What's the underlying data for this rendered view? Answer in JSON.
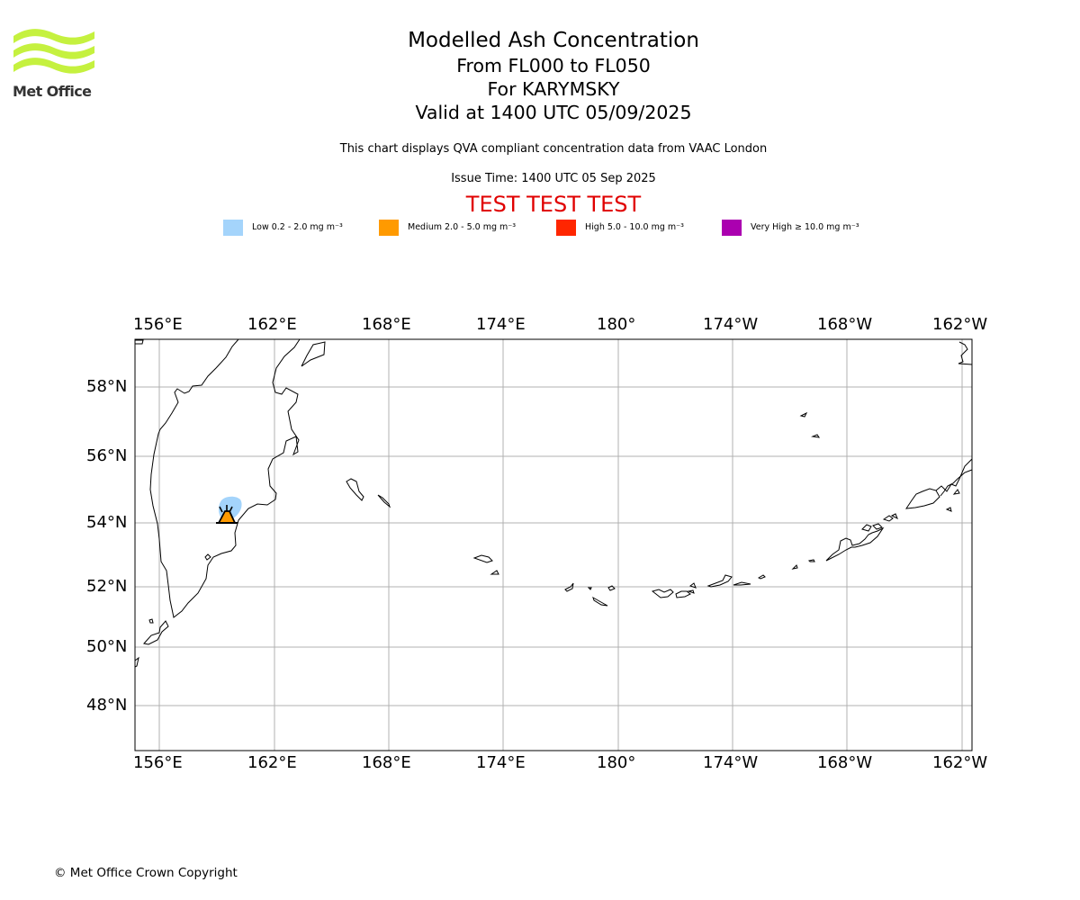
{
  "header": {
    "logo_text": "Met Office",
    "title": "Modelled Ash Concentration",
    "levels": "From FL000 to FL050",
    "volcano": "For KARYMSKY",
    "valid": "Valid at 1400 UTC 05/09/2025",
    "description": "This chart displays QVA compliant concentration data from VAAC London",
    "issue_time": "Issue Time: 1400 UTC 05 Sep 2025",
    "test_banner": "TEST TEST TEST"
  },
  "legend": [
    {
      "label": "Low 0.2 - 2.0 mg m⁻³",
      "color": "#a4d4fb"
    },
    {
      "label": "Medium 2.0 - 5.0 mg m⁻³",
      "color": "#ff9a00"
    },
    {
      "label": "High 5.0 - 10.0 mg m⁻³",
      "color": "#ff2600"
    },
    {
      "label": "Very High  ≥  10.0 mg m⁻³",
      "color": "#ab00b0"
    }
  ],
  "map": {
    "lon_labels": [
      "156°E",
      "162°E",
      "168°E",
      "174°E",
      "180°",
      "174°W",
      "168°W",
      "162°W"
    ],
    "lat_labels": [
      "58°N",
      "56°N",
      "54°N",
      "52°N",
      "50°N",
      "48°N"
    ],
    "grid": true,
    "volcano_marker": "volcano-icon",
    "colors": {
      "coastline": "#000000",
      "grid": "#b0b0b0"
    }
  },
  "footer": {
    "copyright": "© Met Office Crown Copyright"
  }
}
